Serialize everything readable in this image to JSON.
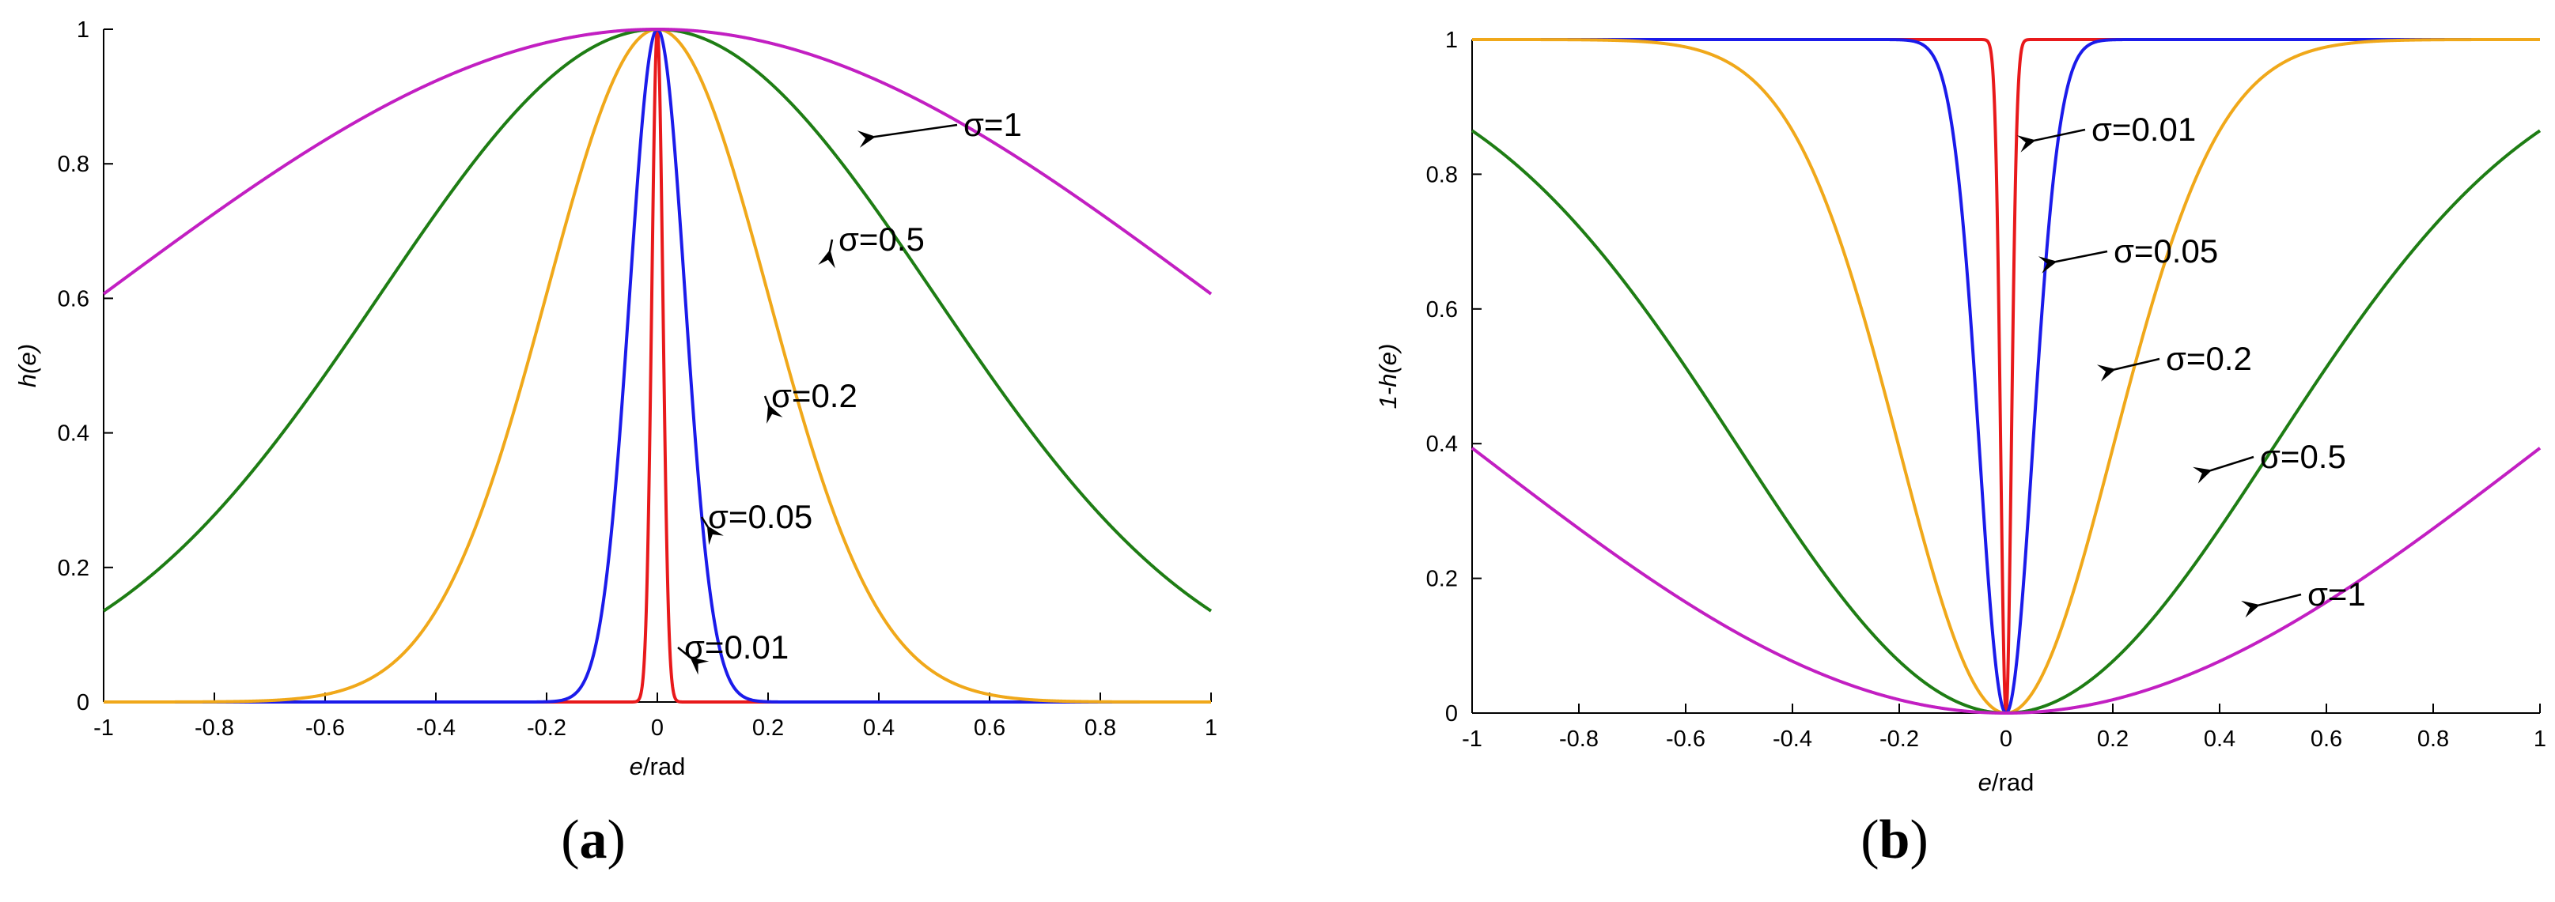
{
  "chart_data": [
    {
      "type": "line",
      "panel_label": "(a)",
      "panel_label_letter": "a",
      "xlabel": "e/rad",
      "xlabel_var": "e",
      "xlabel_unit": "/rad",
      "ylabel": "h(e)",
      "ylabel_prefix": "",
      "ylabel_var": "h(",
      "ylabel_var2": "e",
      "ylabel_suffix": ")",
      "xlim": [
        -1,
        1
      ],
      "ylim": [
        0,
        1
      ],
      "xticks": [
        "-1",
        "-0.8",
        "-0.6",
        "-0.4",
        "-0.2",
        "0",
        "0.2",
        "0.4",
        "0.6",
        "0.8",
        "1"
      ],
      "yticks": [
        "0",
        "0.2",
        "0.4",
        "0.6",
        "0.8",
        "1"
      ],
      "grid": false,
      "function": "exp(-e^2/(2*sigma^2))",
      "series": [
        {
          "sigma": 0.01,
          "color": "#e8191b"
        },
        {
          "sigma": 0.05,
          "color": "#1b1bea"
        },
        {
          "sigma": 0.2,
          "color": "#f0a81a"
        },
        {
          "sigma": 0.5,
          "color": "#1e7d14"
        },
        {
          "sigma": 1,
          "color": "#c21fc2"
        }
      ],
      "annotations": [
        {
          "text": "σ=1",
          "arrow_to": [
            0.36,
            0.84
          ]
        },
        {
          "text": "σ=0.5",
          "arrow_to": [
            0.28,
            0.67
          ]
        },
        {
          "text": "σ=0.2",
          "arrow_to": [
            0.17,
            0.44
          ]
        },
        {
          "text": "σ=0.05",
          "arrow_to": [
            0.06,
            0.26
          ]
        },
        {
          "text": "σ=0.01",
          "arrow_to": [
            0.03,
            0.065
          ]
        }
      ]
    },
    {
      "type": "line",
      "panel_label": "(b)",
      "panel_label_letter": "b",
      "xlabel": "e/rad",
      "xlabel_var": "e",
      "xlabel_unit": "/rad",
      "ylabel": "1-h(e)",
      "ylabel_prefix": "1-",
      "ylabel_var": "h(",
      "ylabel_var2": "e",
      "ylabel_suffix": ")",
      "xlim": [
        -1,
        1
      ],
      "ylim": [
        0,
        1
      ],
      "xticks": [
        "-1",
        "-0.8",
        "-0.6",
        "-0.4",
        "-0.2",
        "0",
        "0.2",
        "0.4",
        "0.6",
        "0.8",
        "1"
      ],
      "yticks": [
        "0",
        "0.2",
        "0.4",
        "0.6",
        "0.8",
        "1"
      ],
      "grid": false,
      "function": "1-exp(-e^2/(2*sigma^2))",
      "series": [
        {
          "sigma": 0.01,
          "color": "#e8191b"
        },
        {
          "sigma": 0.05,
          "color": "#1b1bea"
        },
        {
          "sigma": 0.2,
          "color": "#f0a81a"
        },
        {
          "sigma": 0.5,
          "color": "#1e7d14"
        },
        {
          "sigma": 1,
          "color": "#c21fc2"
        }
      ],
      "annotations": [
        {
          "text": "σ=0.01",
          "arrow_to": [
            0.02,
            0.85
          ]
        },
        {
          "text": "σ=0.05",
          "arrow_to": [
            0.06,
            0.67
          ]
        },
        {
          "text": "σ=0.2",
          "arrow_to": [
            0.17,
            0.51
          ]
        },
        {
          "text": "σ=0.5",
          "arrow_to": [
            0.35,
            0.36
          ]
        },
        {
          "text": "σ=1",
          "arrow_to": [
            0.44,
            0.16
          ]
        }
      ]
    }
  ]
}
